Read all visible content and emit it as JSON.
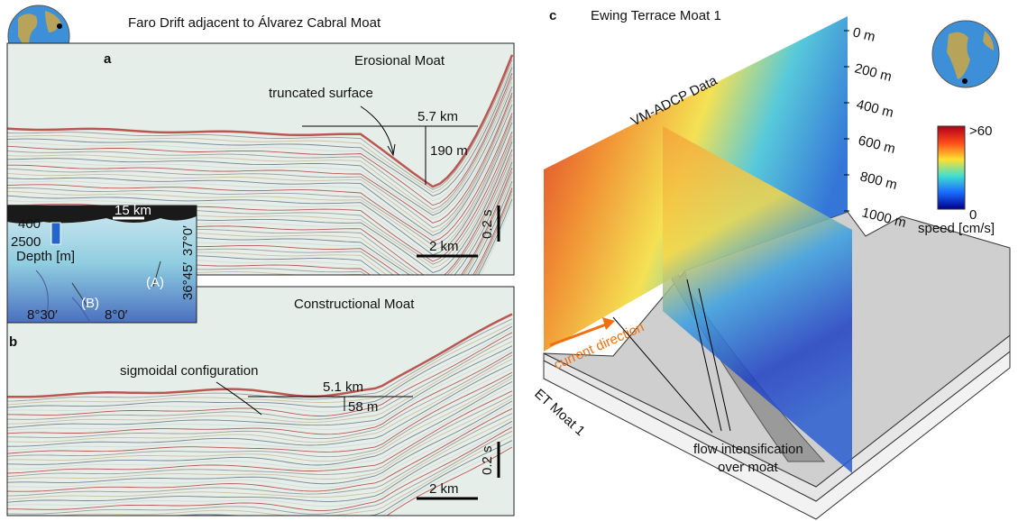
{
  "panel_a": {
    "title": "Faro Drift adjacent to Álvarez Cabral Moat",
    "label": "a",
    "heading": "Erosional Moat",
    "feature": "truncated surface",
    "width": "5.7 km",
    "height": "190 m",
    "time_scale": "0.2 s",
    "distance_scale": "2 km"
  },
  "inset": {
    "scale": "15 km",
    "depth_min": 400,
    "depth_max": 2500,
    "depth_label": "Depth [m]",
    "profile_a": "(A)",
    "profile_b": "(B)",
    "lon_1": "8°30′",
    "lon_2": "8°0′",
    "lat_1": "36°45′",
    "lat_2": "37°0′"
  },
  "panel_b": {
    "label": "b",
    "heading": "Constructional Moat",
    "feature": "sigmoidal configuration",
    "width": "5.1 km",
    "height": "58 m",
    "time_scale": "0.2 s",
    "distance_scale": "2 km"
  },
  "panel_c": {
    "label": "c",
    "title": "Ewing Terrace Moat 1",
    "data_label": "VM-ADCP Data",
    "depths": [
      "0 m",
      "200 m",
      "400 m",
      "600 m",
      "800 m",
      "1000 m"
    ],
    "colorbar_max": ">60",
    "colorbar_min": 0,
    "colorbar_label": "speed [cm/s]",
    "current": "current direction",
    "moat": "ET Moat 1",
    "flow": [
      "flow intensification",
      "over moat"
    ]
  }
}
